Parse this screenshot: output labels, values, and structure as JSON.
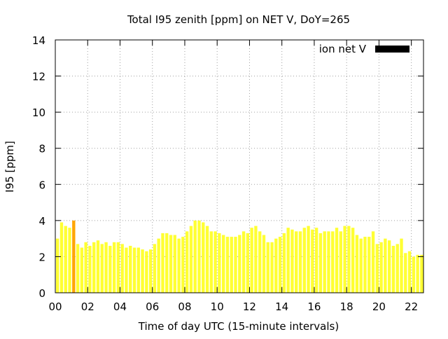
{
  "chart_data": {
    "type": "bar",
    "title": "Total I95 zenith [ppm] on NET V, DoY=265",
    "xlabel": "Time of day UTC (15-minute intervals)",
    "ylabel": "I95 [ppm]",
    "xlim": [
      0,
      22.75
    ],
    "ylim": [
      0,
      14
    ],
    "x_unit": "hours UTC",
    "x_ticks": [
      "00",
      "02",
      "04",
      "06",
      "08",
      "10",
      "12",
      "14",
      "16",
      "18",
      "20",
      "22"
    ],
    "y_ticks": [
      "0",
      "2",
      "4",
      "6",
      "8",
      "10",
      "12",
      "14"
    ],
    "grid": true,
    "legend": {
      "position": "top-right",
      "label": "ion net V",
      "color": "#000000"
    },
    "series": [
      {
        "name": "ion net V",
        "color": "#ffff33",
        "highlight_color": "#ffa500",
        "highlight_index": 4,
        "bar_width_hours": 0.25,
        "values": [
          3.0,
          3.9,
          3.7,
          3.6,
          4.0,
          2.7,
          2.5,
          2.8,
          2.6,
          2.8,
          2.9,
          2.7,
          2.8,
          2.6,
          2.8,
          2.8,
          2.7,
          2.5,
          2.6,
          2.5,
          2.5,
          2.4,
          2.3,
          2.4,
          2.7,
          3.0,
          3.3,
          3.3,
          3.2,
          3.2,
          3.0,
          3.1,
          3.4,
          3.7,
          4.0,
          4.0,
          3.9,
          3.7,
          3.4,
          3.4,
          3.3,
          3.2,
          3.1,
          3.1,
          3.1,
          3.2,
          3.4,
          3.3,
          3.6,
          3.7,
          3.4,
          3.2,
          2.8,
          2.8,
          3.0,
          3.1,
          3.3,
          3.6,
          3.5,
          3.4,
          3.4,
          3.6,
          3.7,
          3.5,
          3.6,
          3.3,
          3.4,
          3.4,
          3.4,
          3.6,
          3.4,
          3.7,
          3.7,
          3.6,
          3.2,
          3.0,
          3.1,
          3.1,
          3.4,
          2.7,
          2.8,
          3.0,
          2.9,
          2.6,
          2.7,
          3.0,
          2.2,
          2.3,
          2.0,
          2.1,
          2.1
        ]
      }
    ]
  }
}
